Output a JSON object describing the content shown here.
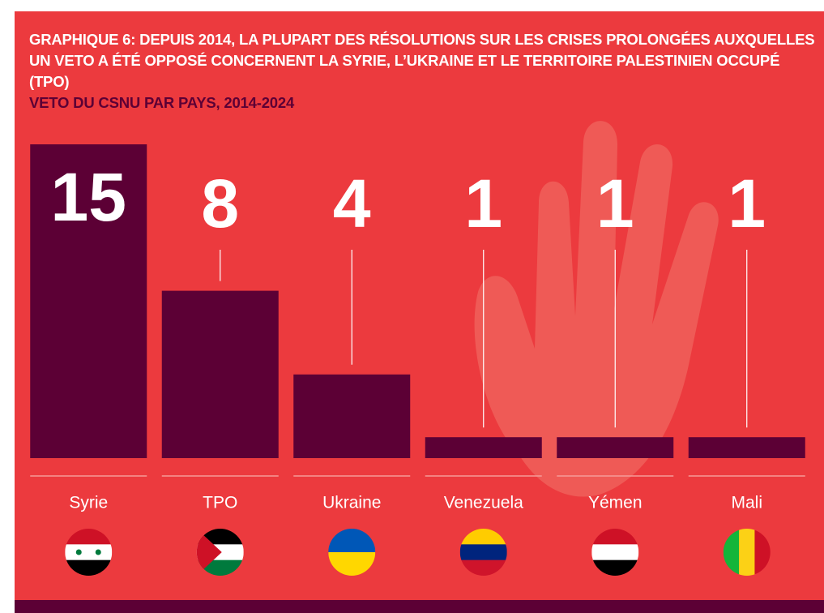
{
  "chart_data": {
    "type": "bar",
    "title": "GRAPHIQUE 6: DEPUIS 2014, LA PLUPART DES RÉSOLUTIONS SUR LES CRISES PROLONGÉES AUXQUELLES UN VETO A ÉTÉ OPPOSÉ CONCERNENT LA SYRIE, L’UKRAINE ET LE TERRITOIRE PALESTINIEN OCCUPÉ (TPO)",
    "subtitle": "VETO DU CSNU PAR PAYS, 2014-2024",
    "categories": [
      "Syrie",
      "TPO",
      "Ukraine",
      "Venezuela",
      "Yémen",
      "Mali"
    ],
    "values": [
      15,
      8,
      4,
      1,
      1,
      1
    ],
    "color": "#5c0035"
  }
}
